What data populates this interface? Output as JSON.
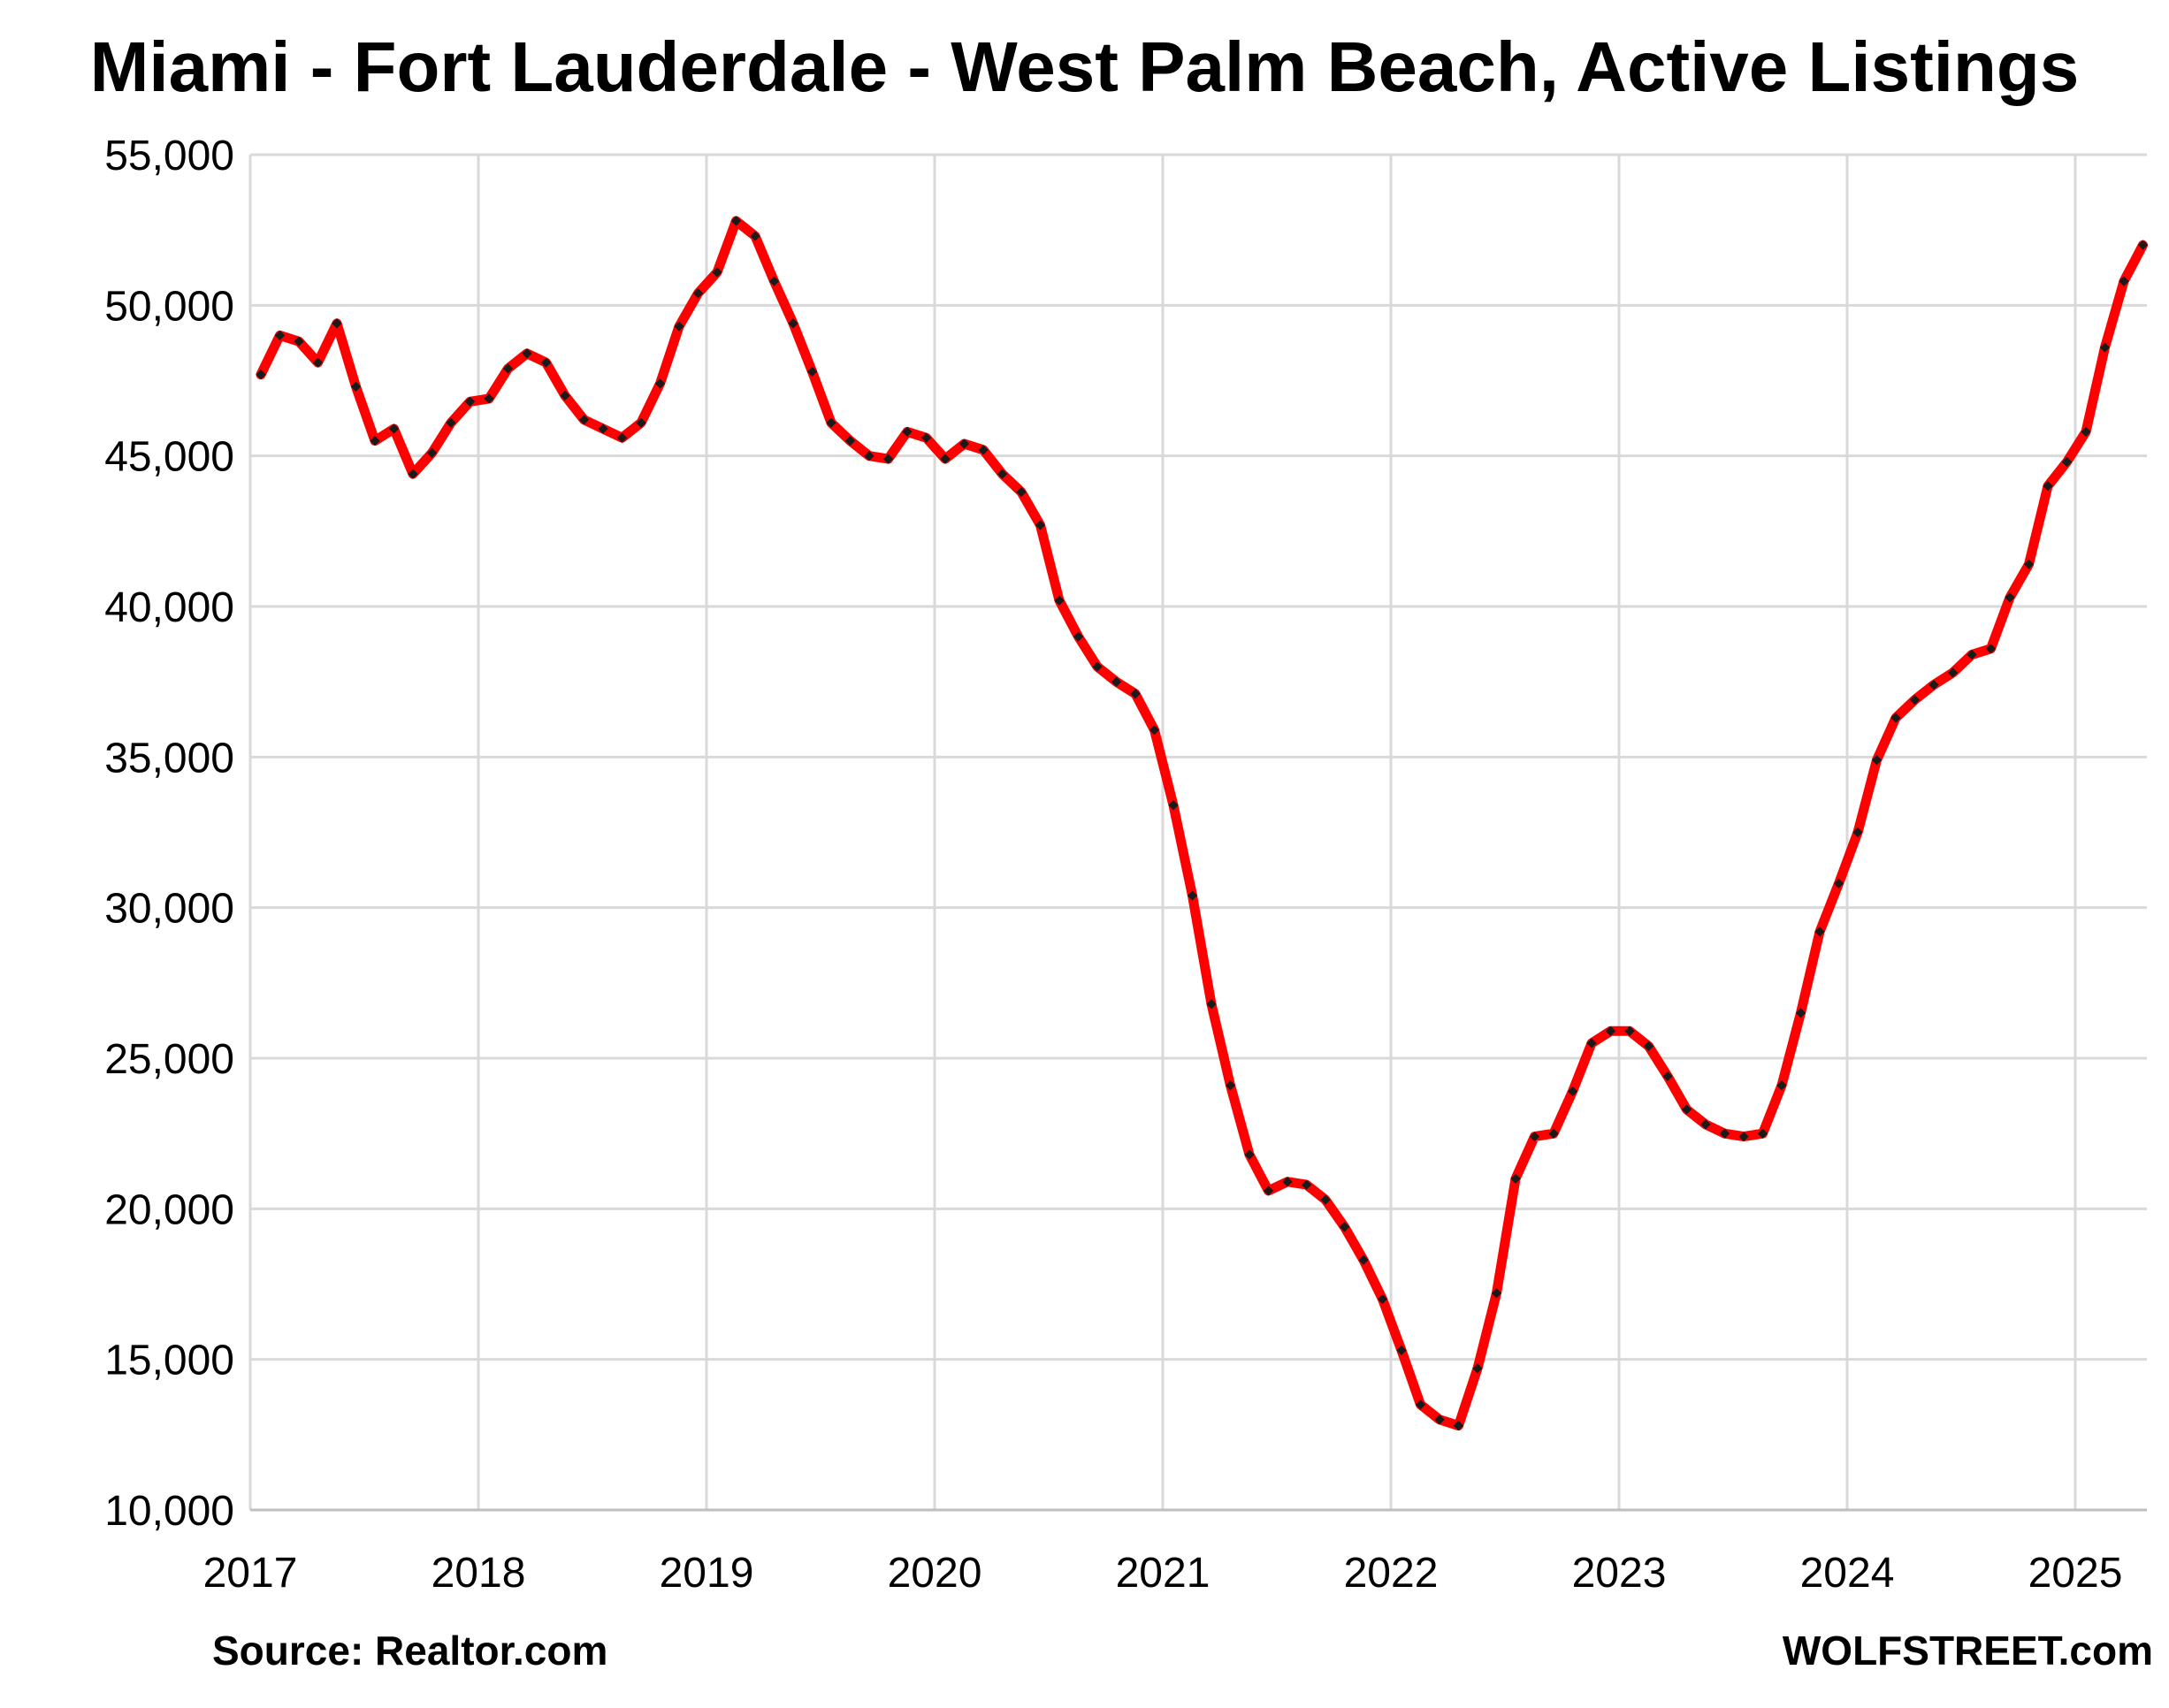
{
  "title": "Miami - Fort Lauderdale - West Palm Beach, Active Listings",
  "source": "Source: Realtor.com",
  "brand": "WOLFSTREET.com",
  "colors": {
    "line": "#ff0000",
    "marker": "#1a1a1a",
    "grid": "#d9d9d9"
  },
  "chart_data": {
    "type": "line",
    "title": "Miami - Fort Lauderdale - West Palm Beach, Active Listings",
    "xlabel": "",
    "ylabel": "",
    "ylim": [
      10000,
      55000
    ],
    "yticks": [
      "10,000",
      "15,000",
      "20,000",
      "25,000",
      "30,000",
      "35,000",
      "40,000",
      "45,000",
      "50,000",
      "55,000"
    ],
    "xticks": [
      "2017",
      "2018",
      "2019",
      "2020",
      "2021",
      "2022",
      "2023",
      "2024",
      "2025"
    ],
    "grid": true,
    "legend": "none",
    "x_start": "2017-01",
    "x_end": "2025-04",
    "series": [
      {
        "values": [
          47700,
          49000,
          48800,
          48100,
          49400,
          47300,
          45500,
          45900,
          44400,
          45100,
          46100,
          46800,
          46900,
          47900,
          48400,
          48100,
          47000,
          46200,
          45900,
          45600,
          46100,
          47400,
          49300,
          50400,
          51100,
          52800,
          52300,
          50800,
          49400,
          47800,
          46100,
          45500,
          45000,
          44900,
          45800,
          45600,
          44900,
          45400,
          45200,
          44400,
          43800,
          42700,
          40200,
          39000,
          38000,
          37500,
          37100,
          35900,
          33400,
          30400,
          26800,
          24100,
          21800,
          20600,
          20900,
          20800,
          20300,
          19400,
          18300,
          17000,
          15300,
          13500,
          13000,
          12800,
          14700,
          17200,
          21000,
          22400,
          22500,
          23900,
          25500,
          25900,
          25900,
          25400,
          24400,
          23300,
          22800,
          22500,
          22400,
          22500,
          24100,
          26500,
          29200,
          30800,
          32500,
          34900,
          36300,
          36900,
          37400,
          37800,
          38400,
          38600,
          40300,
          41400,
          44000,
          44800,
          45800,
          48600,
          50800,
          52000
        ]
      }
    ]
  }
}
